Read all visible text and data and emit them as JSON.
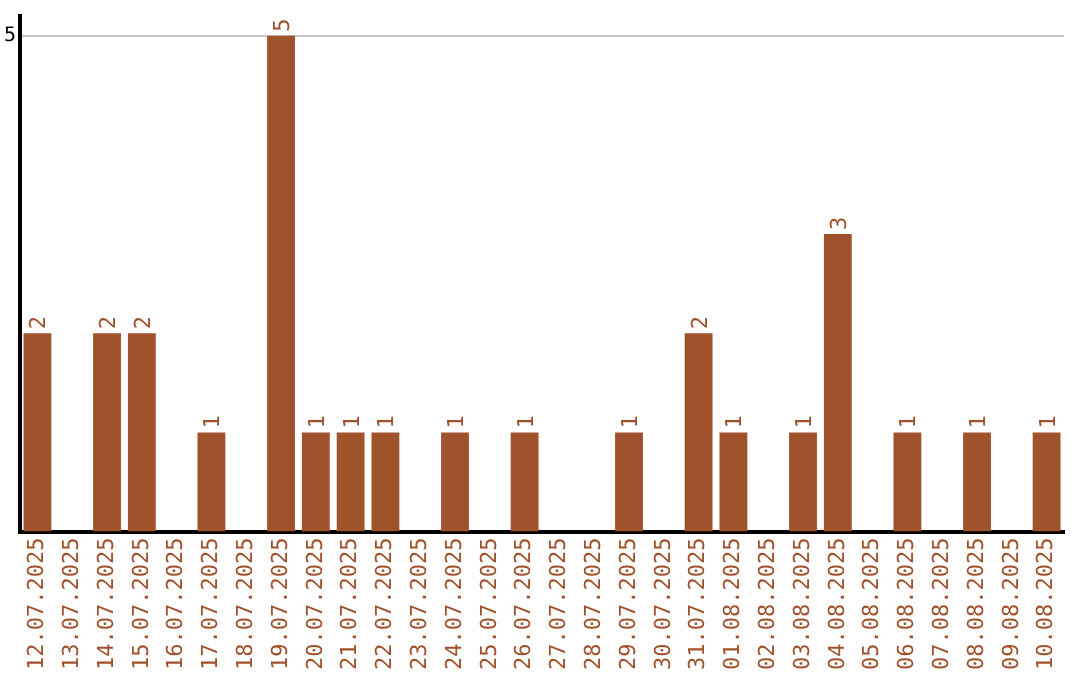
{
  "chart_data": {
    "type": "bar",
    "categories": [
      "12.07.2025",
      "13.07.2025",
      "14.07.2025",
      "15.07.2025",
      "16.07.2025",
      "17.07.2025",
      "18.07.2025",
      "19.07.2025",
      "20.07.2025",
      "21.07.2025",
      "22.07.2025",
      "23.07.2025",
      "24.07.2025",
      "25.07.2025",
      "26.07.2025",
      "27.07.2025",
      "28.07.2025",
      "29.07.2025",
      "30.07.2025",
      "31.07.2025",
      "01.08.2025",
      "02.08.2025",
      "03.08.2025",
      "04.08.2025",
      "05.08.2025",
      "06.08.2025",
      "07.08.2025",
      "08.08.2025",
      "09.08.2025",
      "10.08.2025"
    ],
    "values": [
      2,
      null,
      2,
      2,
      null,
      1,
      null,
      5,
      1,
      1,
      1,
      null,
      1,
      null,
      1,
      null,
      null,
      1,
      null,
      2,
      1,
      null,
      1,
      3,
      null,
      1,
      null,
      1,
      null,
      1
    ],
    "color": "#a0522d",
    "ylim": [
      0,
      5.2
    ],
    "yticks": [
      5
    ],
    "grid": "y",
    "legend": false,
    "data_labels": true
  }
}
